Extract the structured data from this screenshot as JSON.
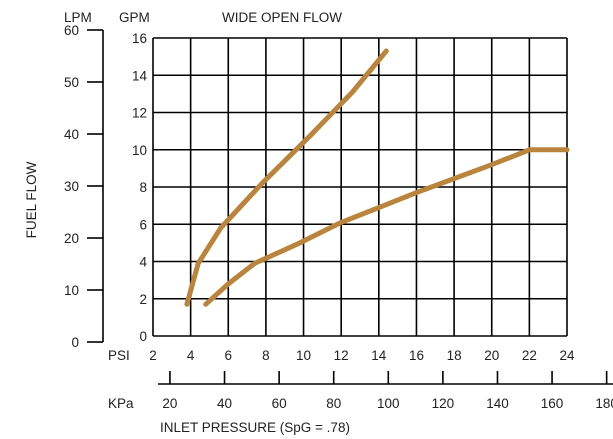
{
  "chart_data": {
    "type": "line",
    "title": "WIDE OPEN FLOW",
    "ylabel": "FUEL FLOW",
    "xlabel": "INLET PRESSURE (SpG = .78)",
    "y_primary": {
      "unit": "GPM",
      "ylim": [
        0,
        16
      ],
      "ticks": [
        "0",
        "2",
        "4",
        "6",
        "8",
        "10",
        "12",
        "14",
        "16"
      ]
    },
    "y_secondary": {
      "unit": "LPM",
      "ylim": [
        0,
        60
      ],
      "ticks": [
        "0",
        "10",
        "20",
        "30",
        "40",
        "50",
        "60"
      ]
    },
    "x_primary": {
      "unit": "PSI",
      "xlim": [
        2,
        24
      ],
      "ticks": [
        "2",
        "4",
        "6",
        "8",
        "10",
        "12",
        "14",
        "16",
        "18",
        "20",
        "22",
        "24"
      ]
    },
    "x_secondary": {
      "unit": "KPa",
      "ticks": [
        "20",
        "40",
        "60",
        "80",
        "100",
        "120",
        "140",
        "160",
        "180"
      ]
    },
    "grid": true,
    "line_color": "#B8843E",
    "series": [
      {
        "x": [
          3.8,
          4.4,
          5.6,
          7.8,
          10.4,
          12.6,
          14.4
        ],
        "y": [
          1.7,
          3.9,
          5.8,
          8.2,
          10.8,
          13.1,
          15.3
        ]
      },
      {
        "x": [
          4.8,
          6.0,
          7.4,
          9.6,
          12.0,
          16.0,
          20.0,
          22.0,
          24.0
        ],
        "y": [
          1.7,
          2.8,
          3.9,
          4.9,
          6.1,
          7.7,
          9.2,
          10.0,
          10.0
        ]
      }
    ]
  }
}
